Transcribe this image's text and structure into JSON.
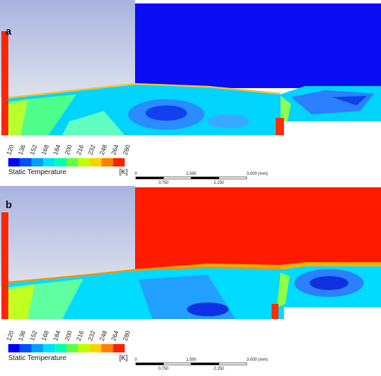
{
  "panels": [
    {
      "label": "a",
      "colorbar": {
        "ticks": [
          "120",
          "136",
          "152",
          "168",
          "184",
          "200",
          "216",
          "232",
          "248",
          "264",
          "280"
        ],
        "title": "Static Temperature",
        "unit": "[K]"
      },
      "scale_bar": {
        "top_labels": [
          "0",
          "1.500",
          "3.000 (mm)"
        ],
        "bottom_labels": [
          "0.750",
          "2.250"
        ]
      }
    },
    {
      "label": "b",
      "colorbar": {
        "ticks": [
          "120",
          "136",
          "152",
          "168",
          "184",
          "200",
          "216",
          "232",
          "248",
          "264",
          "280"
        ],
        "title": "Static Temperature",
        "unit": "[K]"
      },
      "scale_bar": {
        "top_labels": [
          "0",
          "1.500",
          "3.000 (mm)"
        ],
        "bottom_labels": [
          "0.750",
          "2.250"
        ]
      }
    }
  ]
}
